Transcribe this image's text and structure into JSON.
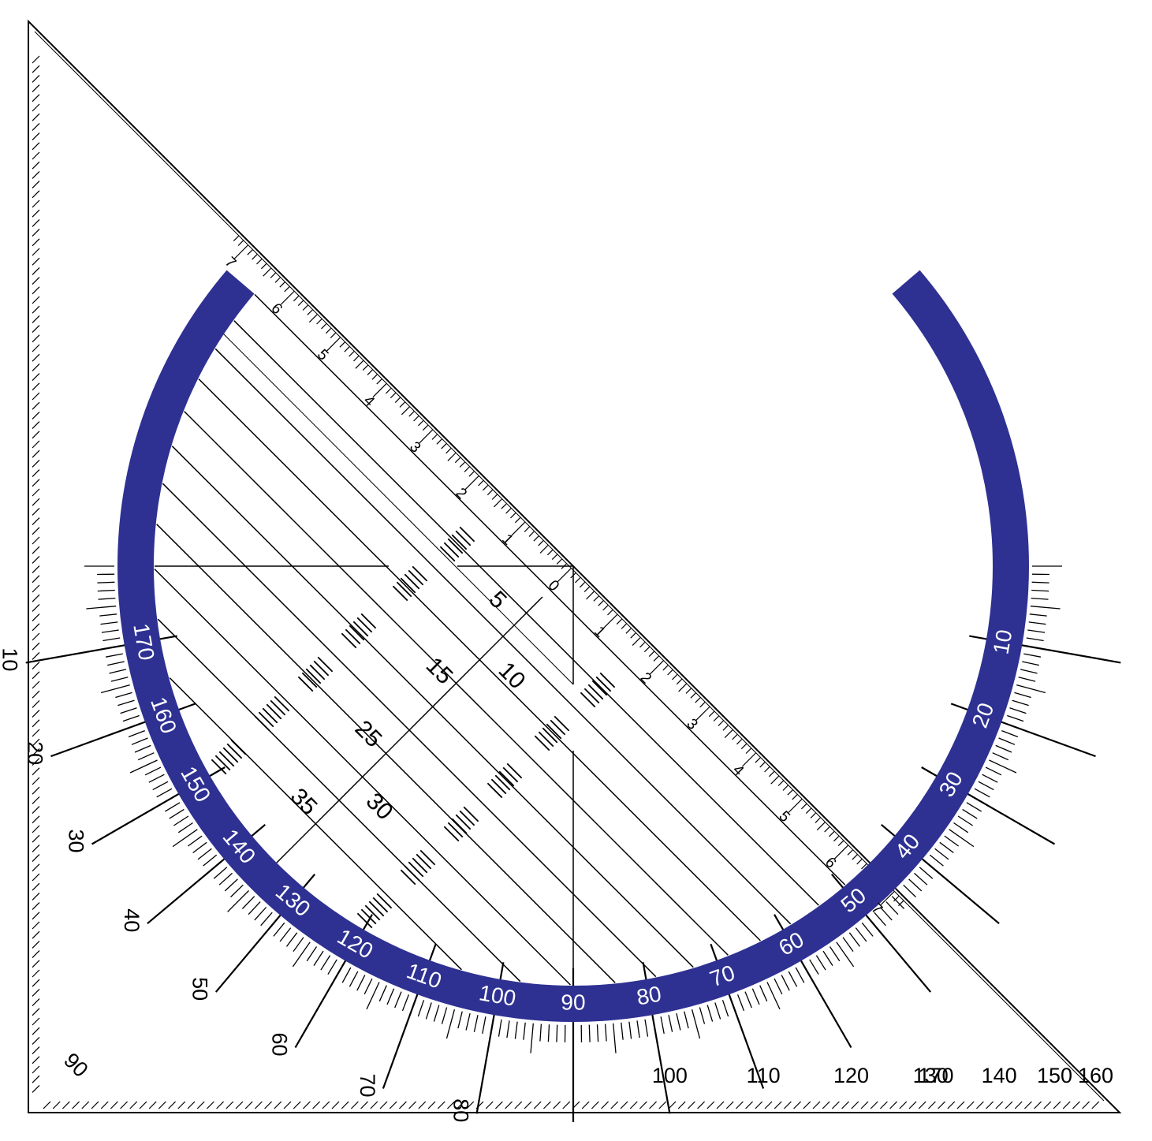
{
  "colors": {
    "ink": "#000000",
    "band": "#2e3192",
    "band_text": "#ffffff",
    "background": "#ffffff"
  },
  "outer_scale": {
    "labels": [
      "10",
      "20",
      "30",
      "40",
      "50",
      "60",
      "70",
      "80",
      "90",
      "100",
      "110",
      "120",
      "130",
      "140",
      "150",
      "160",
      "170"
    ]
  },
  "inner_band": {
    "labels": [
      "170",
      "160",
      "150",
      "140",
      "130",
      "120",
      "110",
      "100",
      "90",
      "80",
      "70",
      "60",
      "50",
      "40",
      "30",
      "20",
      "10"
    ]
  },
  "hypotenuse_scale": {
    "left_labels": [
      "7",
      "6",
      "5",
      "4",
      "3",
      "2",
      "1"
    ],
    "zero_label": "0",
    "right_labels": [
      "1",
      "2",
      "3",
      "4",
      "5",
      "6",
      "7"
    ]
  },
  "parallel_line_labels": [
    "5",
    "10",
    "15",
    "25",
    "30",
    "35"
  ]
}
